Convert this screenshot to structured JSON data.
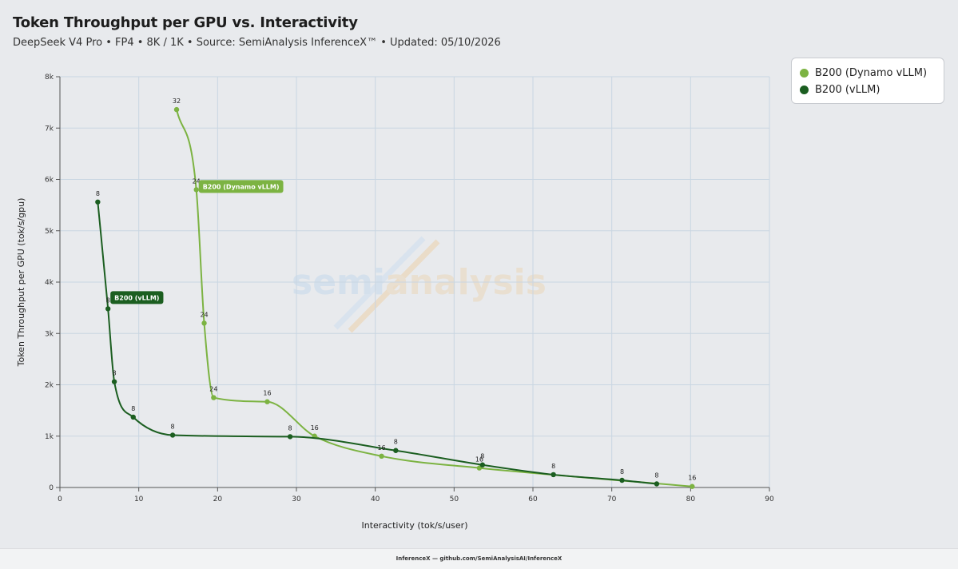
{
  "header": {
    "title": "Token Throughput per GPU vs. Interactivity",
    "subtitle": "DeepSeek V4 Pro • FP4 • 8K / 1K • Source: SemiAnalysis InferenceX™ • Updated: 05/10/2026"
  },
  "watermark": {
    "text_a": "semi",
    "text_b": "analysis"
  },
  "footer": {
    "text": "InferenceX — github.com/SemiAnalysisAI/InferenceX"
  },
  "colors": {
    "dynamo": "#7cb342",
    "vllm": "#1b5e20",
    "grid": "#c9d6e2",
    "background": "#e8eaed"
  },
  "chart_data": {
    "type": "line",
    "xlabel": "Interactivity (tok/s/user)",
    "ylabel": "Token Throughput per GPU (tok/s/gpu)",
    "xlim": [
      0,
      90
    ],
    "ylim": [
      0,
      8000
    ],
    "x_ticks": [
      "0",
      "10",
      "20",
      "30",
      "40",
      "50",
      "60",
      "70",
      "80",
      "90"
    ],
    "y_ticks": [
      "0",
      "1k",
      "2k",
      "3k",
      "4k",
      "5k",
      "6k",
      "7k",
      "8k"
    ],
    "grid": true,
    "legend_position": "top-right",
    "series": [
      {
        "name": "B200 (Dynamo vLLM)",
        "color": "#7cb342",
        "points": [
          {
            "x": 14.8,
            "y": 7360,
            "label": "32"
          },
          {
            "x": 17.3,
            "y": 5800,
            "label": "24"
          },
          {
            "x": 18.3,
            "y": 3200,
            "label": "24"
          },
          {
            "x": 19.5,
            "y": 1750,
            "label": "24"
          },
          {
            "x": 26.3,
            "y": 1670,
            "label": "16"
          },
          {
            "x": 32.3,
            "y": 1000,
            "label": "16"
          },
          {
            "x": 40.8,
            "y": 610,
            "label": "16"
          },
          {
            "x": 53.2,
            "y": 380,
            "label": "16"
          },
          {
            "x": 80.2,
            "y": 20,
            "label": "16"
          }
        ],
        "tag": "B200 (Dynamo vLLM)"
      },
      {
        "name": "B200 (vLLM)",
        "color": "#1b5e20",
        "points": [
          {
            "x": 4.8,
            "y": 5560,
            "label": "8"
          },
          {
            "x": 6.1,
            "y": 3480,
            "label": "8"
          },
          {
            "x": 6.9,
            "y": 2060,
            "label": "8"
          },
          {
            "x": 9.3,
            "y": 1370,
            "label": "8"
          },
          {
            "x": 14.3,
            "y": 1020,
            "label": "8"
          },
          {
            "x": 29.2,
            "y": 990,
            "label": "8"
          },
          {
            "x": 42.6,
            "y": 720,
            "label": "8"
          },
          {
            "x": 53.6,
            "y": 440,
            "label": "8"
          },
          {
            "x": 62.6,
            "y": 250,
            "label": "8"
          },
          {
            "x": 71.3,
            "y": 140,
            "label": "8"
          },
          {
            "x": 75.7,
            "y": 70,
            "label": "8"
          }
        ],
        "tag": "B200 (vLLM)"
      }
    ]
  }
}
